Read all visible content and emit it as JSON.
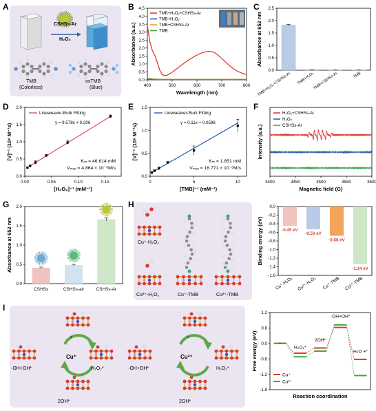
{
  "panel_letters": [
    "A",
    "B",
    "C",
    "D",
    "E",
    "F",
    "G",
    "H",
    "I"
  ],
  "panel_a": {
    "catalyst": "CSHSs-Ar",
    "oxidant": "H₂O₂",
    "left_name": "TMB",
    "left_state": "(Colorless)",
    "right_name": "oxTMB",
    "right_state": "(Blue)"
  },
  "panel_h": {
    "labels": [
      "Cu⁺-H₂O₂",
      "Cu²⁺-H₂O₂",
      "Cu⁺-TMB",
      "Cu²⁺-TMB"
    ]
  },
  "panel_i": {
    "labels_left": [
      "·OH+OH*",
      "*",
      "Cu⁺",
      "H₂O₂*",
      "2OH*"
    ],
    "labels_right": [
      "·OH+OH*",
      "*",
      "Cu²⁺",
      "H₂O₂*",
      "2OH*"
    ]
  },
  "colors": {
    "red": "#e03a30",
    "blue": "#2b5fa8",
    "gold": "#e6a21c",
    "green": "#3aa84a",
    "pink": "#d64f74",
    "bar_blue": "#b9cbe6",
    "bar_green": "#cfe6c8",
    "bar_pink": "#f2c2be",
    "bar_orange": "#f5a55a"
  },
  "chart_data": [
    {
      "id": "B",
      "type": "line",
      "xlabel": "Wavelength (nm)",
      "ylabel": "Absorbance (a.u.)",
      "xlim": [
        400,
        800
      ],
      "ylim": [
        0,
        4.5
      ],
      "xticks": [
        400,
        500,
        600,
        700,
        800
      ],
      "yticks": [
        0,
        0.5,
        1.0,
        1.5,
        2.0,
        2.5,
        3.0,
        3.5,
        4.0,
        4.5
      ],
      "legend": "top-left",
      "series": [
        {
          "name": "TMB+H₂O₂+CSHSs-Ar",
          "color": "#e03a30",
          "x": [
            400,
            410,
            420,
            430,
            440,
            450,
            460,
            470,
            480,
            490,
            500,
            520,
            540,
            560,
            580,
            600,
            620,
            640,
            650,
            660,
            670,
            680,
            700,
            720,
            740,
            760,
            780,
            800
          ],
          "y": [
            3.4,
            2.4,
            1.85,
            1.55,
            1.1,
            0.6,
            0.33,
            0.26,
            0.3,
            0.38,
            0.48,
            0.72,
            0.95,
            1.18,
            1.38,
            1.56,
            1.7,
            1.78,
            1.79,
            1.77,
            1.72,
            1.62,
            1.35,
            1.05,
            0.78,
            0.57,
            0.43,
            0.34
          ]
        },
        {
          "name": "TMB+H₂O₂",
          "color": "#2b5fa8",
          "x": [
            400,
            420,
            440,
            460,
            500,
            600,
            700,
            800
          ],
          "y": [
            0.1,
            0.06,
            0.04,
            0.03,
            0.03,
            0.03,
            0.03,
            0.03
          ]
        },
        {
          "name": "TMB+CSHSs-Ar",
          "color": "#e6a21c",
          "x": [
            400,
            420,
            440,
            460,
            500,
            600,
            700,
            800
          ],
          "y": [
            0.08,
            0.05,
            0.04,
            0.03,
            0.03,
            0.03,
            0.03,
            0.03
          ]
        },
        {
          "name": "TMB",
          "color": "#3aa84a",
          "x": [
            400,
            420,
            440,
            460,
            500,
            600,
            700,
            800
          ],
          "y": [
            0.06,
            0.04,
            0.03,
            0.02,
            0.02,
            0.02,
            0.02,
            0.02
          ]
        }
      ]
    },
    {
      "id": "C",
      "type": "bar",
      "ylabel": "Absorbance at 652 nm",
      "ylim": [
        0,
        2.5
      ],
      "yticks": [
        0.0,
        0.5,
        1.0,
        1.5,
        2.0,
        2.5
      ],
      "categories": [
        "TMB+H₂O₂+CSHSs-Ar",
        "TMB+H₂O₂",
        "TMB+CSHSs-Ar",
        "TMB"
      ],
      "values": [
        1.82,
        0.02,
        0.01,
        0.01
      ],
      "errors": [
        0.03,
        0.005,
        0.005,
        0.005
      ]
    },
    {
      "id": "D",
      "type": "scatter",
      "xlabel": "[H₂O₂]⁻¹ (mM⁻¹)",
      "ylabel": "[V]⁻¹ (10⁸ M⁻¹s)",
      "xlim": [
        0.0,
        0.18
      ],
      "ylim": [
        0.0,
        2.0
      ],
      "xticks": [
        0.0,
        0.05,
        0.1,
        0.15
      ],
      "yticks": [
        0.0,
        0.5,
        1.0,
        1.5,
        2.0
      ],
      "legend": "Lineweaver-Burk Fitting",
      "equation": "y = 9.578x + 0.206",
      "km": "Kₘ = 46.614 mM",
      "vmax": "Vₘₐₓ = 4.864 × 10⁻⁸M/s",
      "fit": {
        "slope": 9.578,
        "intercept": 0.206
      },
      "points": {
        "x": [
          0.005,
          0.01,
          0.02,
          0.04,
          0.08,
          0.16
        ],
        "y": [
          0.25,
          0.3,
          0.4,
          0.6,
          0.98,
          1.74
        ]
      },
      "errors": [
        0.02,
        0.03,
        0.05,
        0.03,
        0.06,
        0.04
      ]
    },
    {
      "id": "E",
      "type": "scatter",
      "xlabel": "[TMB]⁻¹ (mM⁻¹)",
      "ylabel": "[V]⁻¹ (10⁸ M⁻¹s)",
      "xlim": [
        0,
        11
      ],
      "ylim": [
        0.0,
        1.5
      ],
      "xticks": [
        0,
        5,
        10
      ],
      "yticks": [
        0.0,
        0.5,
        1.0,
        1.5
      ],
      "legend": "Lineweaver-Burk Fitting",
      "equation": "y = 0.11x + 0.0596",
      "km": "Kₘ = 1.851 mM",
      "vmax": "Vₘₐₓ = 16.771 × 10⁻⁸M/s",
      "fit": {
        "slope": 0.11,
        "intercept": 0.0596
      },
      "points": {
        "x": [
          0.2,
          0.5,
          1.0,
          2.0,
          5.0,
          10.0
        ],
        "y": [
          0.08,
          0.12,
          0.17,
          0.3,
          0.56,
          1.1
        ]
      },
      "errors": [
        0.01,
        0.02,
        0.03,
        0.02,
        0.1,
        0.14
      ]
    },
    {
      "id": "F",
      "type": "line",
      "xlabel": "Magnetic field (G)",
      "ylabel": "Intensity (a.u.)",
      "xlim": [
        3400,
        3600
      ],
      "xticks": [
        3400,
        3450,
        3500,
        3550,
        3600
      ],
      "legend": "top-left",
      "series": [
        {
          "name": "H₂O₂+CSHSs-Ar",
          "color": "#e03a30",
          "offset": 0.6,
          "signal": true
        },
        {
          "name": "H₂O₂",
          "color": "#2b5fa8",
          "offset": 0.35,
          "signal": false
        },
        {
          "name": "CSHSs-Ar",
          "color": "#3aa84a",
          "offset": 0.12,
          "signal": false
        }
      ]
    },
    {
      "id": "G",
      "type": "bar",
      "ylabel": "Absorbance at 652 nm",
      "ylim": [
        0.0,
        2.0
      ],
      "yticks": [
        0.0,
        0.5,
        1.0,
        1.5,
        2.0
      ],
      "categories": [
        "CSHSs",
        "CSHSs-air",
        "CSHSs-Ar"
      ],
      "values": [
        0.41,
        0.48,
        1.67
      ],
      "errors": [
        0.02,
        0.02,
        0.04
      ]
    },
    {
      "id": "H2",
      "type": "bar",
      "ylabel": "Binding energy (eV)",
      "ylim": [
        -1.6,
        0.0
      ],
      "yticks": [
        0.0,
        -0.2,
        -0.4,
        -0.6,
        -0.8,
        -1.0,
        -1.2,
        -1.4,
        -1.6
      ],
      "categories": [
        "Cu⁺-H₂O₂",
        "Cu²⁺-H₂O₂",
        "Cu⁺-TMB",
        "Cu²⁺-TMB"
      ],
      "values": [
        -0.45,
        -0.53,
        -0.68,
        -1.34
      ],
      "value_labels": [
        "-0.45 eV",
        "-0.53 eV",
        "-0.68 eV",
        "-1.34 eV"
      ]
    },
    {
      "id": "I2",
      "type": "line",
      "xlabel": "Reaction coordination",
      "ylabel": "Free energy (eV)",
      "ylim": [
        -1.8,
        1.2
      ],
      "yticks": [
        1.2,
        0.6,
        0.0,
        -0.6,
        -1.2,
        -1.8
      ],
      "legend": "bottom-left",
      "state_labels": [
        "*",
        "H₂O₂*",
        "2OH*",
        "·OH+OH*",
        "H₂O +*"
      ],
      "series": [
        {
          "name": "Cu⁺",
          "color": "#e03a30",
          "values": [
            0.0,
            -0.38,
            -0.18,
            0.62,
            -0.62
          ]
        },
        {
          "name": "Cu²⁺",
          "color": "#3aa84a",
          "values": [
            0.0,
            -0.52,
            -0.3,
            0.72,
            -1.25
          ]
        }
      ]
    }
  ]
}
